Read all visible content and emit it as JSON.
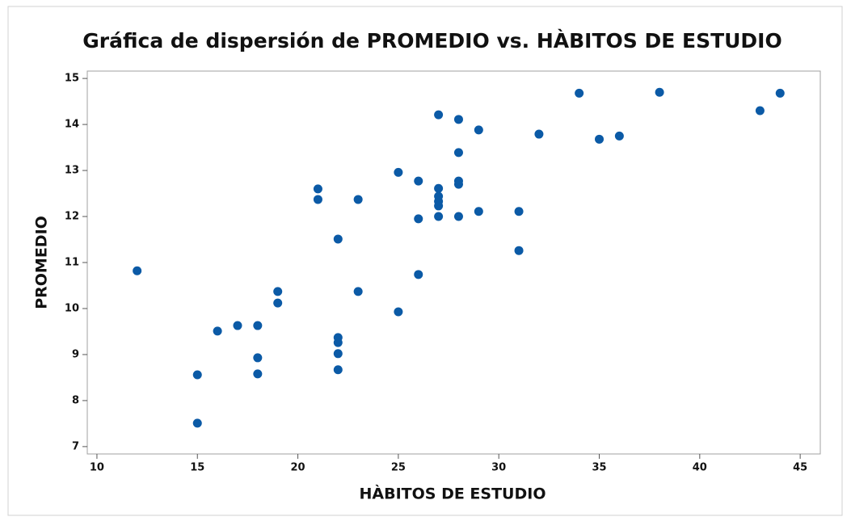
{
  "chart_data": {
    "type": "scatter",
    "title": "Gráfica de dispersión de PROMEDIO vs. HÀBITOS DE ESTUDIO",
    "x_label": "HÀBITOS DE ESTUDIO",
    "y_label": "PROMEDIO",
    "color": "#0b5aa6",
    "x": [
      12,
      15,
      15,
      16,
      17,
      18,
      18,
      18,
      19,
      19,
      21,
      21,
      22,
      22,
      22,
      22,
      22,
      23,
      23,
      25,
      25,
      26,
      26,
      26,
      27,
      27,
      27,
      27,
      27,
      27,
      28,
      28,
      28,
      28,
      28,
      29,
      29,
      31,
      31,
      32,
      34,
      35,
      36,
      38,
      43,
      44
    ],
    "values": [
      10.82,
      8.56,
      7.51,
      9.51,
      9.63,
      9.63,
      8.93,
      8.58,
      10.37,
      10.12,
      12.6,
      12.37,
      11.51,
      9.37,
      9.26,
      9.02,
      8.67,
      12.37,
      10.37,
      12.96,
      9.93,
      12.77,
      11.95,
      10.74,
      14.21,
      12.61,
      12.44,
      12.33,
      12.23,
      12.0,
      14.11,
      13.39,
      12.77,
      12.7,
      12.0,
      13.88,
      12.11,
      12.11,
      11.26,
      13.79,
      14.68,
      13.68,
      13.75,
      14.7,
      14.3,
      14.68
    ],
    "xlim": [
      9.52,
      46.0
    ],
    "ylim": [
      6.84,
      15.16
    ],
    "xticks": [
      10,
      15,
      20,
      25,
      30,
      35,
      40,
      45
    ],
    "yticks": [
      7,
      8,
      9,
      10,
      11,
      12,
      13,
      14,
      15
    ]
  }
}
